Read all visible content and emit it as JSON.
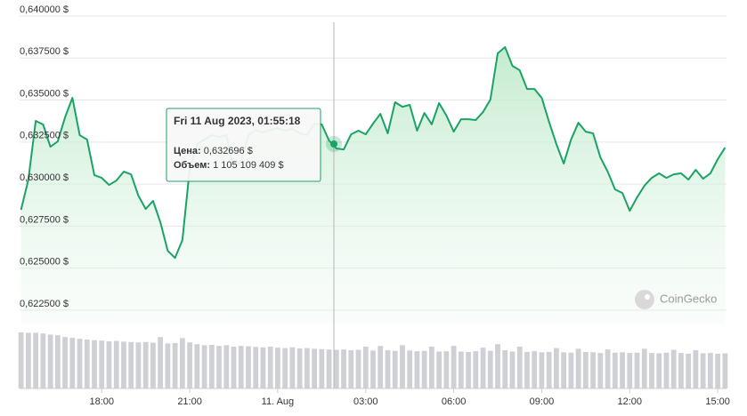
{
  "chart_data": {
    "type": "line",
    "x": [
      15.25,
      15.5,
      15.75,
      16,
      16.25,
      16.5,
      16.75,
      17,
      17.25,
      17.5,
      17.75,
      18,
      18.25,
      18.5,
      18.75,
      19,
      19.25,
      19.5,
      19.75,
      20,
      20.25,
      20.5,
      20.75,
      21,
      21.25,
      21.5,
      21.75,
      22,
      22.25,
      22.5,
      22.75,
      23,
      23.25,
      23.5,
      23.75,
      24,
      24.25,
      24.5,
      24.75,
      25,
      25.25,
      25.5,
      25.75,
      26,
      26.25,
      26.5,
      26.75,
      27,
      27.25,
      27.5,
      27.75,
      28,
      28.25,
      28.5,
      28.75,
      29,
      29.25,
      29.5,
      29.75,
      30,
      30.25,
      30.5,
      30.75,
      31,
      31.25,
      31.5,
      31.75,
      32,
      32.25,
      32.5,
      32.75,
      33,
      33.25,
      33.5,
      33.75,
      34,
      34.25,
      34.5,
      34.75,
      35,
      35.25,
      35.5,
      35.75,
      36,
      36.25,
      36.5,
      36.75,
      37,
      37.25,
      37.5,
      37.75,
      38,
      38.25,
      38.5,
      38.75,
      39,
      39.25
    ],
    "xlim": [
      15.2,
      39.3
    ],
    "xticks": [
      {
        "value": 18,
        "label": "18:00"
      },
      {
        "value": 21,
        "label": "21:00"
      },
      {
        "value": 24,
        "label": "11. Aug"
      },
      {
        "value": 27,
        "label": "03:00"
      },
      {
        "value": 30,
        "label": "06:00"
      },
      {
        "value": 33,
        "label": "09:00"
      },
      {
        "value": 36,
        "label": "12:00"
      },
      {
        "value": 39,
        "label": "15:00"
      }
    ],
    "ylim": [
      0.62165,
      0.64
    ],
    "yticks": [
      {
        "value": 0.6225,
        "label": "0,622500 $"
      },
      {
        "value": 0.625,
        "label": "0,625000 $"
      },
      {
        "value": 0.6275,
        "label": "0,627500 $"
      },
      {
        "value": 0.63,
        "label": "0,630000 $"
      },
      {
        "value": 0.6325,
        "label": "0,632500 $"
      },
      {
        "value": 0.635,
        "label": "0,635000 $"
      },
      {
        "value": 0.6375,
        "label": "0,637500 $"
      },
      {
        "value": 0.64,
        "label": "0,640000 $"
      }
    ],
    "grid": true,
    "y2lim": [
      0,
      1630000000
    ],
    "series": [
      {
        "type": "line",
        "color": "#1aa364",
        "values": [
          0.62847,
          0.63027,
          0.63376,
          0.63355,
          0.63222,
          0.63254,
          0.63397,
          0.63513,
          0.63291,
          0.63265,
          0.63053,
          0.63037,
          0.62995,
          0.63021,
          0.63074,
          0.63058,
          0.62931,
          0.62852,
          0.629,
          0.62773,
          0.62603,
          0.62561,
          0.62667,
          0.6309,
          0.63238,
          0.63265,
          0.63291,
          0.63281,
          0.63291,
          0.6309,
          0.63143,
          0.63291,
          0.63323,
          0.63307,
          0.63323,
          0.63333,
          0.63318,
          0.63328,
          0.63302,
          0.63291,
          0.6336,
          0.63355,
          0.63259,
          0.63212,
          0.63206,
          0.63296,
          0.63318,
          0.63296,
          0.6336,
          0.63418,
          0.63302,
          0.63487,
          0.6346,
          0.63471,
          0.63318,
          0.63423,
          0.63355,
          0.63482,
          0.63408,
          0.63312,
          0.63386,
          0.63386,
          0.63381,
          0.63429,
          0.63503,
          0.63778,
          0.63815,
          0.63704,
          0.63677,
          0.63566,
          0.63566,
          0.63513,
          0.6337,
          0.63238,
          0.63122,
          0.63265,
          0.63365,
          0.63312,
          0.63302,
          0.63159,
          0.63074,
          0.62968,
          0.62947,
          0.62841,
          0.62921,
          0.6299,
          0.63037,
          0.63064,
          0.63037,
          0.63058,
          0.63064,
          0.63027,
          0.63085,
          0.63032,
          0.63064,
          0.63148,
          0.63217
        ]
      },
      {
        "type": "bar",
        "axis": "y2",
        "color": "#cfd0d5",
        "values": [
          1580000000.0,
          1570000000.0,
          1570000000.0,
          1550000000.0,
          1520000000.0,
          1500000000.0,
          1450000000.0,
          1430000000.0,
          1400000000.0,
          1380000000.0,
          1360000000.0,
          1350000000.0,
          1330000000.0,
          1340000000.0,
          1320000000.0,
          1310000000.0,
          1300000000.0,
          1310000000.0,
          1290000000.0,
          1450000000.0,
          1270000000.0,
          1280000000.0,
          1420000000.0,
          1300000000.0,
          1250000000.0,
          1220000000.0,
          1230000000.0,
          1200000000.0,
          1220000000.0,
          1180000000.0,
          1200000000.0,
          1190000000.0,
          1170000000.0,
          1160000000.0,
          1180000000.0,
          1150000000.0,
          1140000000.0,
          1160000000.0,
          1130000000.0,
          1140000000.0,
          1120000000.0,
          1110000000.0,
          1100000000.0,
          1090000000.0,
          1100000000.0,
          1080000000.0,
          1090000000.0,
          1180000000.0,
          1070000000.0,
          1200000000.0,
          1080000000.0,
          1060000000.0,
          1220000000.0,
          1070000000.0,
          1050000000.0,
          1060000000.0,
          1180000000.0,
          1040000000.0,
          1050000000.0,
          1200000000.0,
          1040000000.0,
          1030000000.0,
          1050000000.0,
          1150000000.0,
          1060000000.0,
          1250000000.0,
          1080000000.0,
          1040000000.0,
          1180000000.0,
          1030000000.0,
          1050000000.0,
          1020000000.0,
          1030000000.0,
          1140000000.0,
          1020000000.0,
          1010000000.0,
          1120000000.0,
          1030000000.0,
          1020000000.0,
          1000000000.0,
          1100000000.0,
          1010000000.0,
          1020000000.0,
          1000000000.0,
          1010000000.0,
          1120000000.0,
          1000000000.0,
          990000000.0,
          1010000000.0,
          1090000000.0,
          1000000000.0,
          980000000.0,
          1080000000.0,
          990000000.0,
          1000000000.0,
          980000000.0,
          990000000.0
        ]
      }
    ],
    "tooltip": {
      "title": "Fri 11 Aug 2023, 01:55:18",
      "price_label": "Цена:",
      "price": "0,632696 $",
      "volume_label": "Объем:",
      "volume": "1 105 109 409 $"
    },
    "watermark": "CoinGecko"
  }
}
